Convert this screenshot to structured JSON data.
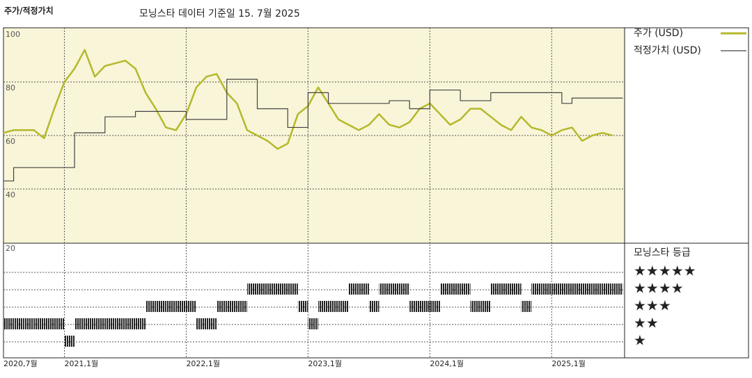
{
  "chart_data": {
    "type": "line",
    "label": "주가/적정가치",
    "title": "모닝스타 데이터 기준일 15. 7월 2025",
    "x": [
      "2020-07",
      "2020-08",
      "2020-09",
      "2020-10",
      "2020-11",
      "2020-12",
      "2021-01",
      "2021-02",
      "2021-03",
      "2021-04",
      "2021-05",
      "2021-06",
      "2021-07",
      "2021-08",
      "2021-09",
      "2021-10",
      "2021-11",
      "2021-12",
      "2022-01",
      "2022-02",
      "2022-03",
      "2022-04",
      "2022-05",
      "2022-06",
      "2022-07",
      "2022-08",
      "2022-09",
      "2022-10",
      "2022-11",
      "2022-12",
      "2023-01",
      "2023-02",
      "2023-03",
      "2023-04",
      "2023-05",
      "2023-06",
      "2023-07",
      "2023-08",
      "2023-09",
      "2023-10",
      "2023-11",
      "2023-12",
      "2024-01",
      "2024-02",
      "2024-03",
      "2024-04",
      "2024-05",
      "2024-06",
      "2024-07",
      "2024-08",
      "2024-09",
      "2024-10",
      "2024-11",
      "2024-12",
      "2025-01",
      "2025-02",
      "2025-03",
      "2025-04",
      "2025-05",
      "2025-06",
      "2025-07"
    ],
    "series": [
      {
        "name": "주가 (USD)",
        "color": "#b5b82a",
        "values": [
          61,
          62,
          62,
          62,
          59,
          70,
          80,
          85,
          92,
          82,
          86,
          87,
          88,
          85,
          76,
          70,
          63,
          62,
          68,
          78,
          82,
          83,
          76,
          72,
          62,
          60,
          58,
          55,
          57,
          68,
          71,
          78,
          72,
          66,
          64,
          62,
          64,
          68,
          64,
          63,
          65,
          70,
          72,
          68,
          64,
          66,
          70,
          70,
          67,
          64,
          62,
          67,
          63,
          62,
          60,
          62,
          63,
          58,
          60,
          61,
          60
        ]
      },
      {
        "name": "적정가치 (USD)",
        "color": "#444444",
        "step": true,
        "values": [
          43,
          48,
          48,
          48,
          48,
          48,
          48,
          61,
          61,
          61,
          67,
          67,
          67,
          69,
          69,
          69,
          69,
          69,
          66,
          66,
          66,
          66,
          81,
          81,
          81,
          70,
          70,
          70,
          63,
          63,
          76,
          76,
          72,
          72,
          72,
          72,
          72,
          72,
          73,
          73,
          70,
          70,
          77,
          77,
          77,
          73,
          73,
          73,
          76,
          76,
          76,
          76,
          76,
          76,
          76,
          72,
          74,
          74,
          74,
          74,
          74
        ]
      }
    ],
    "ylim": [
      20,
      100
    ],
    "yticks": [
      100,
      80,
      60,
      40,
      20
    ],
    "grid": true,
    "xticks": [
      {
        "value": "2020-07",
        "label": "2020,7월"
      },
      {
        "value": "2021-01",
        "label": "2021,1월"
      },
      {
        "value": "2022-01",
        "label": "2022,1월"
      },
      {
        "value": "2023-01",
        "label": "2023,1월"
      },
      {
        "value": "2024-01",
        "label": "2024,1월"
      },
      {
        "value": "2025-01",
        "label": "2025,1월"
      }
    ],
    "rating": {
      "title": "모닝스타 등급",
      "color": "#222222",
      "levels": [
        {
          "value": 5,
          "label": "★★★★★"
        },
        {
          "value": 4,
          "label": "★★★★"
        },
        {
          "value": 3,
          "label": "★★★"
        },
        {
          "value": 2,
          "label": "★★"
        },
        {
          "value": 1,
          "label": "★"
        }
      ],
      "values": [
        2,
        2,
        2,
        2,
        2,
        2,
        1,
        2,
        2,
        2,
        2,
        2,
        2,
        2,
        3,
        3,
        3,
        3,
        3,
        2,
        2,
        3,
        3,
        3,
        4,
        4,
        4,
        4,
        4,
        3,
        2,
        3,
        3,
        3,
        4,
        4,
        3,
        4,
        4,
        4,
        3,
        3,
        3,
        4,
        4,
        4,
        3,
        3,
        4,
        4,
        4,
        3,
        4,
        4,
        4,
        4,
        4,
        4,
        4,
        4,
        4
      ]
    }
  }
}
